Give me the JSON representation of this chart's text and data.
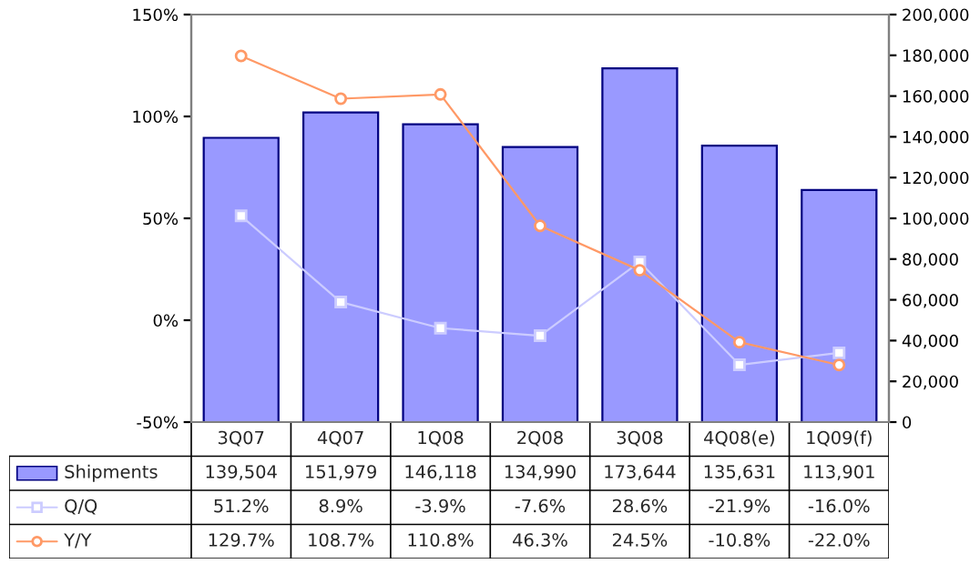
{
  "chart_data": {
    "type": "bar",
    "categories": [
      "3Q07",
      "4Q07",
      "1Q08",
      "2Q08",
      "3Q08",
      "4Q08(e)",
      "1Q09(f)"
    ],
    "series": [
      {
        "name": "Shipments",
        "axis": "y2",
        "color": "#9999ff",
        "values": [
          139504,
          151979,
          146118,
          134990,
          173644,
          135631,
          113901
        ],
        "value_labels": [
          "139,504",
          "151,979",
          "146,118",
          "134,990",
          "173,644",
          "135,631",
          "113,901"
        ]
      },
      {
        "name": "Q/Q",
        "type": "line",
        "color": "#ccccff",
        "marker": "square",
        "values": [
          51.2,
          8.9,
          -3.9,
          -7.6,
          28.6,
          -21.9,
          -16.0
        ],
        "value_labels": [
          "51.2%",
          "8.9%",
          "-3.9%",
          "-7.6%",
          "28.6%",
          "-21.9%",
          "-16.0%"
        ]
      },
      {
        "name": "Y/Y",
        "type": "line",
        "color": "#ff9966",
        "marker": "circle",
        "values": [
          129.7,
          108.7,
          110.8,
          46.3,
          24.5,
          -10.8,
          -22.0
        ],
        "value_labels": [
          "129.7%",
          "108.7%",
          "110.8%",
          "46.3%",
          "24.5%",
          "-10.8%",
          "-22.0%"
        ]
      }
    ],
    "ylim": [
      -50,
      150
    ],
    "yticks": [
      {
        "value": -50,
        "label": "-50%"
      },
      {
        "value": 0,
        "label": "0%"
      },
      {
        "value": 50,
        "label": "50%"
      },
      {
        "value": 100,
        "label": "100%"
      },
      {
        "value": 150,
        "label": "150%"
      }
    ],
    "y2lim": [
      0,
      200000
    ],
    "y2ticks": [
      {
        "value": 0,
        "label": "0"
      },
      {
        "value": 20000,
        "label": "20,000"
      },
      {
        "value": 40000,
        "label": "40,000"
      },
      {
        "value": 60000,
        "label": "60,000"
      },
      {
        "value": 80000,
        "label": "80,000"
      },
      {
        "value": 100000,
        "label": "100,000"
      },
      {
        "value": 120000,
        "label": "120,000"
      },
      {
        "value": 140000,
        "label": "140,000"
      },
      {
        "value": 160000,
        "label": "160,000"
      },
      {
        "value": 180000,
        "label": "180,000"
      },
      {
        "value": 200000,
        "label": "200,000"
      }
    ],
    "legend": "bottom left",
    "grid": false,
    "line_style": "solid"
  }
}
